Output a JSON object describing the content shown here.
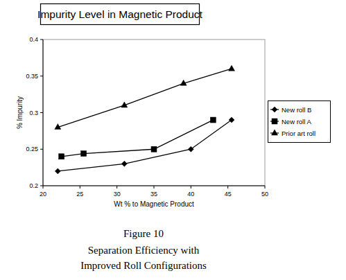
{
  "chart_data": {
    "type": "line",
    "title": "Impurity Level in Magnetic Product",
    "x_label": "Wt % to Magnetic Product",
    "y_label": "% Impurity",
    "annotations": [
      "Figure 10",
      "Separation Efficiency with",
      "Improved Roll Configurations"
    ],
    "xlim": [
      20,
      50
    ],
    "xticks": [
      20,
      25,
      30,
      35,
      40,
      45,
      50
    ],
    "ylim": [
      0.2,
      0.4
    ],
    "yticks": [
      0.2,
      0.25,
      0.3,
      0.35,
      0.4
    ],
    "grid": false,
    "legend": "right",
    "series": [
      {
        "name": "New roll B",
        "color": "#000000",
        "marker": "diamond",
        "x": [
          22,
          31,
          40,
          45.5
        ],
        "values": [
          0.22,
          0.23,
          0.25,
          0.29
        ]
      },
      {
        "name": "New roll A",
        "color": "#000000",
        "marker": "square",
        "x": [
          22.5,
          25.5,
          35,
          43
        ],
        "values": [
          0.24,
          0.244,
          0.25,
          0.29
        ]
      },
      {
        "name": "Prior art roll",
        "color": "#000000",
        "marker": "triangle",
        "x": [
          22,
          31,
          39,
          45.5
        ],
        "values": [
          0.28,
          0.31,
          0.34,
          0.36
        ]
      }
    ]
  }
}
